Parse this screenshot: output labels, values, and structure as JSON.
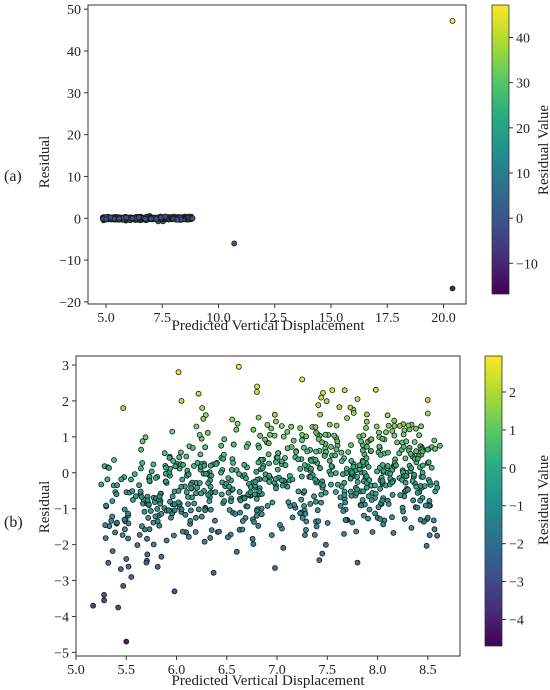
{
  "chart_data": [
    {
      "type": "scatter",
      "panel_label": "(a)",
      "xlabel": "Predicted Vertical Displacement",
      "ylabel": "Residual",
      "xlim": [
        4.2,
        21.0
      ],
      "ylim": [
        -20.5,
        51
      ],
      "xticks": [
        "5.0",
        "7.5",
        "10.0",
        "12.5",
        "15.0",
        "17.5",
        "20.0"
      ],
      "yticks": [
        "−20",
        "−10",
        "0",
        "10",
        "20",
        "30",
        "40",
        "50"
      ],
      "colorbar": {
        "label": "Residual Value",
        "range": [
          -16.8,
          47.2
        ],
        "ticks": [
          "−10",
          "0",
          "10",
          "20",
          "30",
          "40"
        ],
        "colormap": "viridis"
      },
      "cluster_description": "dense band of ~800 points with x from 4.8 to 8.9 and residuals between -0.6 and 0.6",
      "points": [
        {
          "x": 20.4,
          "y": 47.2
        },
        {
          "x": 10.7,
          "y": -6.0
        },
        {
          "x": 20.4,
          "y": -16.8
        },
        {
          "x": 8.85,
          "y": 0.0
        }
      ]
    },
    {
      "type": "scatter",
      "panel_label": "(b)",
      "xlabel": "Predicted Vertical Displacement",
      "ylabel": "Residual",
      "xlim": [
        5.0,
        8.82
      ],
      "ylim": [
        -5.1,
        3.25
      ],
      "xticks": [
        "5.0",
        "5.5",
        "6.0",
        "6.5",
        "7.0",
        "7.5",
        "8.0",
        "8.5"
      ],
      "yticks": [
        "−5",
        "−4",
        "−3",
        "−2",
        "−1",
        "0",
        "1",
        "2",
        "3"
      ],
      "colorbar": {
        "label": "Residual Value",
        "range": [
          -4.7,
          2.95
        ],
        "ticks": [
          "−4",
          "−3",
          "−2",
          "−1",
          "0",
          "1",
          "2"
        ],
        "colormap": "viridis"
      },
      "cloud_description": "about 800 points, x from 5.2 to 8.6, residuals mostly between -2.5 and 2.5",
      "points": [
        {
          "x": 5.17,
          "y": -3.7
        },
        {
          "x": 5.28,
          "y": -3.4
        },
        {
          "x": 5.28,
          "y": -3.55
        },
        {
          "x": 5.42,
          "y": -3.75
        },
        {
          "x": 5.5,
          "y": -4.7
        },
        {
          "x": 5.47,
          "y": -3.15
        },
        {
          "x": 5.47,
          "y": 1.8
        },
        {
          "x": 6.02,
          "y": 2.8
        },
        {
          "x": 6.62,
          "y": 2.95
        },
        {
          "x": 6.05,
          "y": 2.0
        },
        {
          "x": 6.22,
          "y": 2.2
        },
        {
          "x": 6.8,
          "y": 2.25
        },
        {
          "x": 7.55,
          "y": 2.3
        },
        {
          "x": 7.8,
          "y": 2.05
        },
        {
          "x": 8.1,
          "y": 1.6
        },
        {
          "x": 8.5,
          "y": 1.65
        },
        {
          "x": 8.62,
          "y": 0.75
        },
        {
          "x": 8.5,
          "y": -1.25
        },
        {
          "x": 5.98,
          "y": -3.3
        },
        {
          "x": 5.55,
          "y": -2.9
        },
        {
          "x": 5.7,
          "y": -2.5
        },
        {
          "x": 6.98,
          "y": -2.65
        },
        {
          "x": 6.6,
          "y": -2.2
        },
        {
          "x": 7.45,
          "y": -2.25
        },
        {
          "x": 7.8,
          "y": -2.5
        },
        {
          "x": 7.95,
          "y": -1.65
        },
        {
          "x": 5.5,
          "y": -2.4
        }
      ]
    }
  ]
}
